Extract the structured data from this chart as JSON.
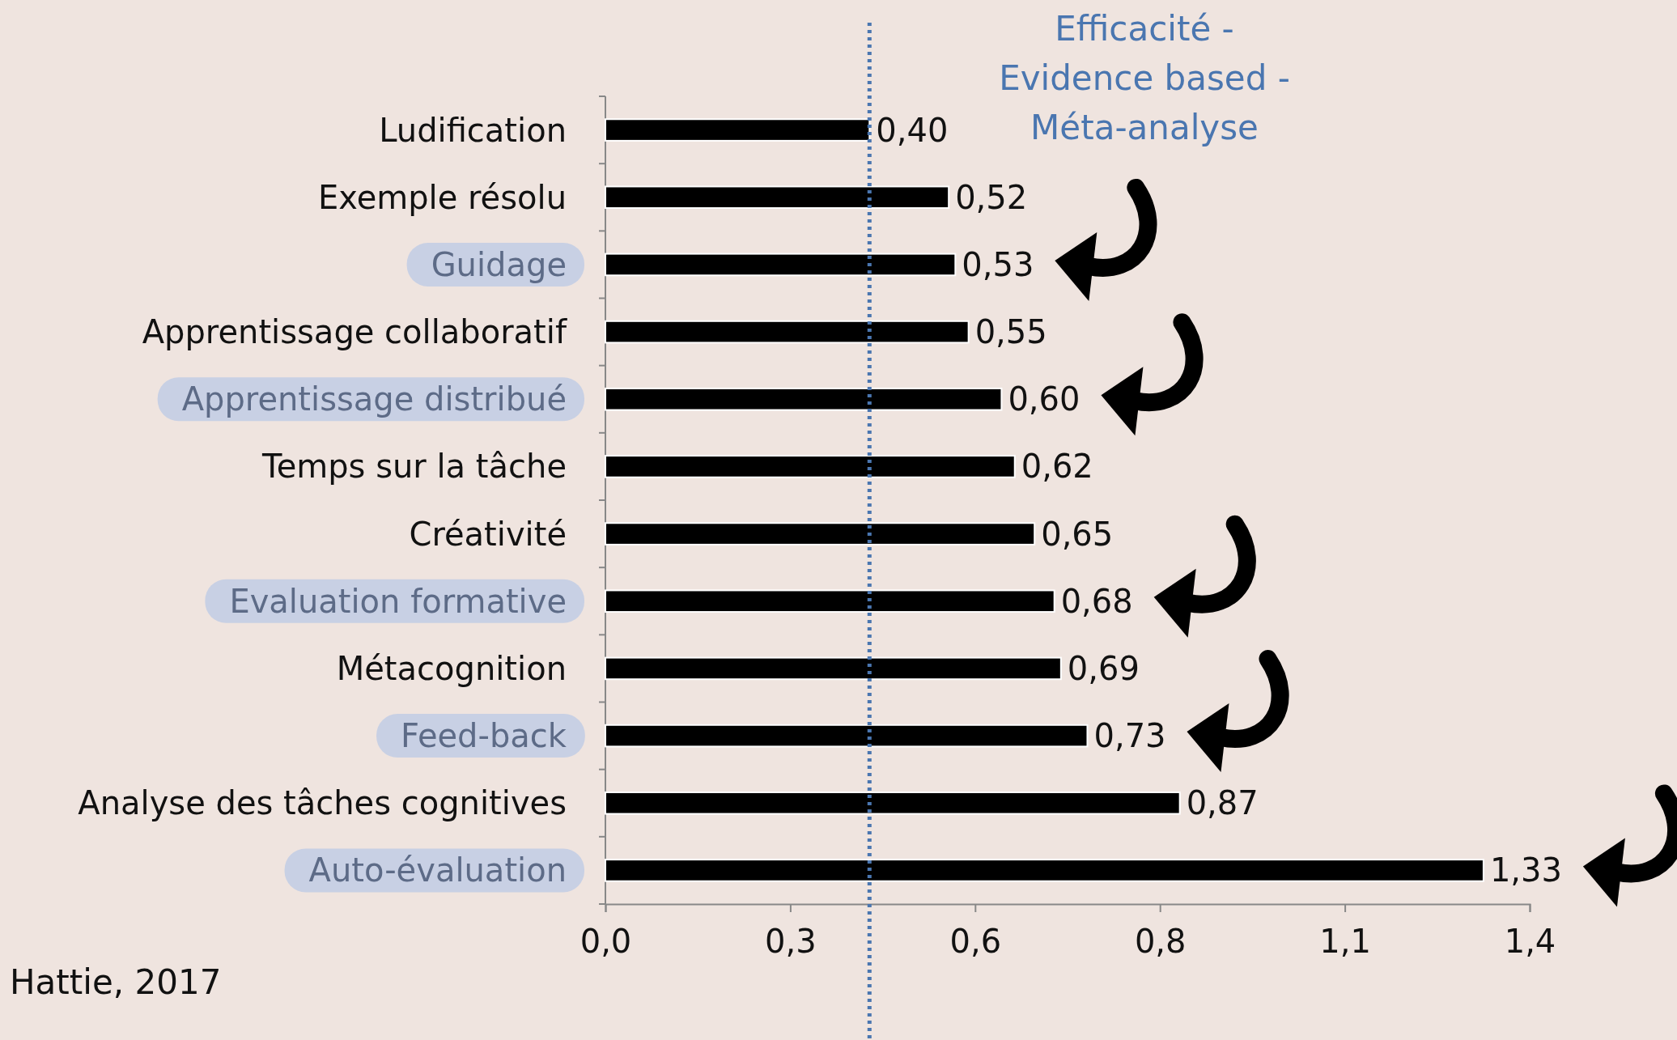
{
  "chart_data": {
    "type": "bar",
    "orientation": "horizontal",
    "categories": [
      "Ludification",
      "Exemple résolu",
      "Guidage",
      "Apprentissage collaboratif",
      "Apprentissage distribué",
      "Temps sur la tâche",
      "Créativité",
      "Evaluation formative",
      "Métacognition",
      "Feed-back",
      "Analyse des tâches cognitives",
      "Auto-évaluation"
    ],
    "values": [
      0.4,
      0.52,
      0.53,
      0.55,
      0.6,
      0.62,
      0.65,
      0.68,
      0.69,
      0.73,
      0.87,
      1.33
    ],
    "color": "#000000",
    "xlim": [
      0,
      1.4
    ],
    "xticks": [
      {
        "value": 0,
        "label": "0,0"
      },
      {
        "value": 0.28,
        "label": "0,3"
      },
      {
        "value": 0.56,
        "label": "0,6"
      },
      {
        "value": 0.84,
        "label": "0,8"
      },
      {
        "value": 1.12,
        "label": "1,1"
      },
      {
        "value": 1.4,
        "label": "1,4"
      }
    ],
    "value_labels": [
      "0,40",
      "0,52",
      "0,53",
      "0,55",
      "0,60",
      "0,62",
      "0,65",
      "0,68",
      "0,69",
      "0,73",
      "0,87",
      "1,33"
    ],
    "grid": false,
    "ref_lines": [
      {
        "axis": "x",
        "value": 0.4,
        "label": "Efficacité - Evidence based - Méta-analyse",
        "color": "#4a76b0",
        "line_style": "dotted"
      }
    ],
    "annotations": [
      "Hattie, 2017"
    ]
  }
}
